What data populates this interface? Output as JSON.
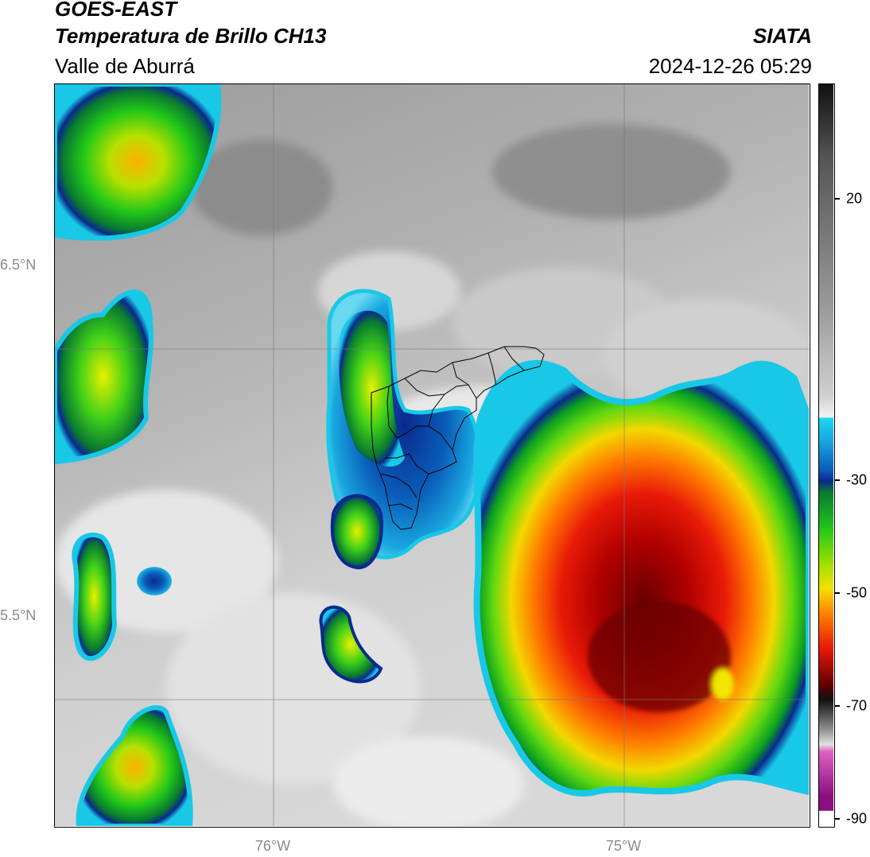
{
  "header": {
    "satellite": "GOES-EAST",
    "product": "Temperatura de Brillo CH13",
    "region": "Valle de Aburrá",
    "agency": "SIATA",
    "datetime": "2024-12-26 05:29"
  },
  "map": {
    "lat_labels": [
      "6.5°N",
      "5.5°N"
    ],
    "lon_labels": [
      "76°W",
      "75°W"
    ]
  },
  "colorbar": {
    "ticks": [
      "20",
      "-30",
      "-50",
      "-70",
      "-90"
    ]
  },
  "colors": {
    "clear_sky": "#9a9a9a",
    "cloud_cyan": "#19c8e6",
    "cloud_blue": "#0a2a8c",
    "cloud_green": "#15c815",
    "cloud_yellow": "#f0e600",
    "cloud_orange": "#ff8a00",
    "cloud_red": "#e01010",
    "cloud_darkred": "#6a0000"
  }
}
